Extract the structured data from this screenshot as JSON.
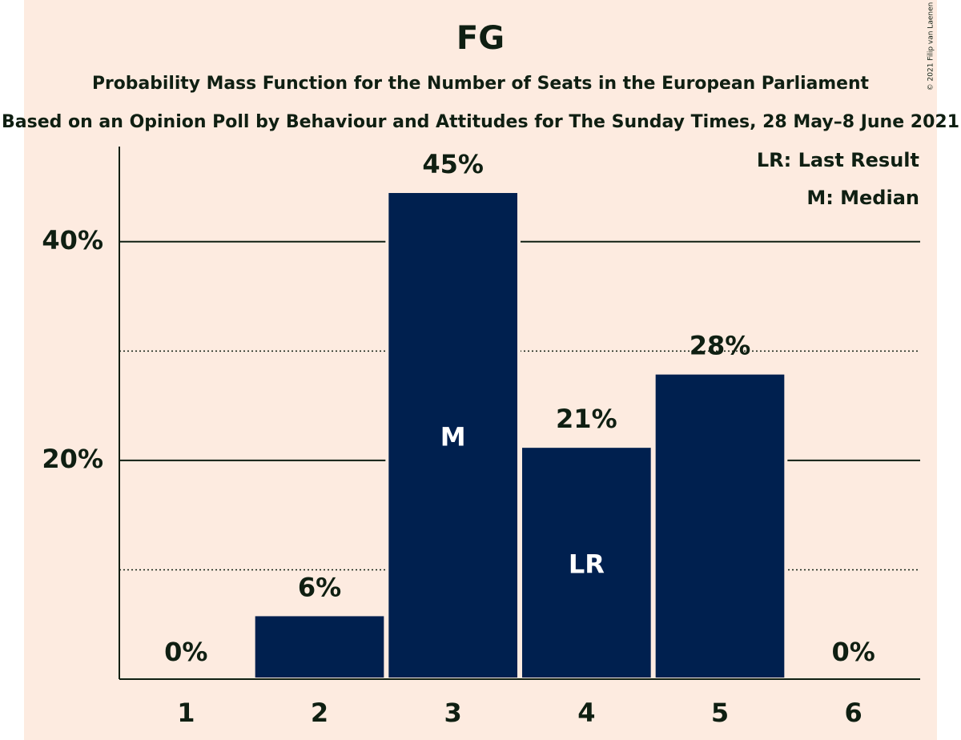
{
  "chart_data": {
    "type": "bar",
    "title": "FG",
    "subtitle": "Probability Mass Function for the Number of Seats in the European Parliament",
    "subtitle2": "Based on an Opinion Poll by Behaviour and Attitudes for The Sunday Times, 28 May–8 June 2021",
    "copyright": "© 2021 Filip van Laenen",
    "legend_notes": [
      "LR: Last Result",
      "M: Median"
    ],
    "categories": [
      "1",
      "2",
      "3",
      "4",
      "5",
      "6"
    ],
    "values": [
      0,
      5.9,
      44.6,
      21.3,
      28.0,
      0
    ],
    "value_labels": [
      "0%",
      "6%",
      "45%",
      "21%",
      "28%",
      "0%"
    ],
    "bar_labels": [
      null,
      null,
      "M",
      "LR",
      null,
      null
    ],
    "color": "#00204f",
    "ylim": [
      0,
      48.7
    ],
    "yticks": [
      {
        "value": 20,
        "label": "20%"
      },
      {
        "value": 40,
        "label": "40%"
      }
    ],
    "minor_yticks": [
      10,
      30
    ],
    "grid": true
  }
}
